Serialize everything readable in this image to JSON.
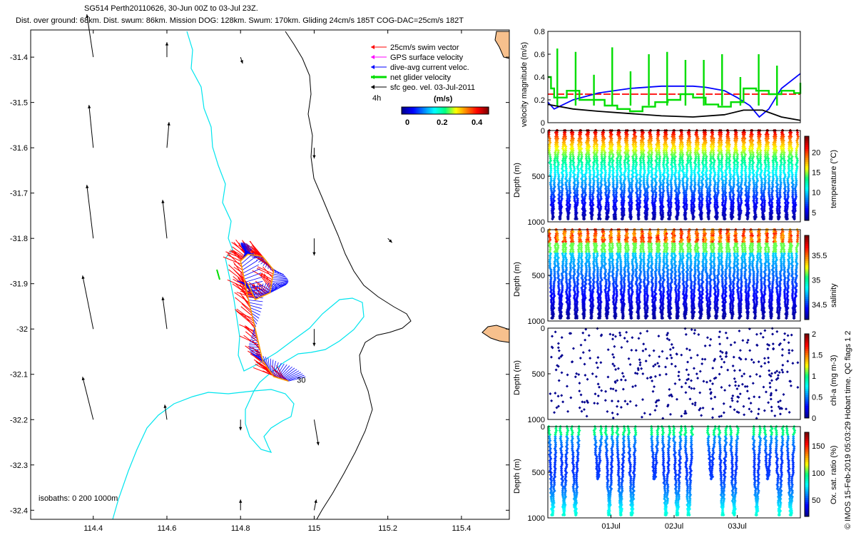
{
  "header": {
    "line1": "SG514 Perth20110626, 30-Jun 00Z to 03-Jul 23Z.",
    "line2": "Dist. over ground: 68km. Dist. swum: 86km. Mission DOG: 128km. Swum: 170km. Gliding 24cm/s 185T COG-DAC=25cm/s 182T"
  },
  "credit": "© IMOS 15-Feb-2019 05:03:29 Hobart time. QC flags 1  2",
  "colors": {
    "coast": "#00e5ee",
    "isobath": "#000000",
    "land": "#f7c08d",
    "swim": "#ff0000",
    "gps": "#ff00ff",
    "dac": "#0000ff",
    "net": "#00dd00",
    "geo": "#000000"
  },
  "chart_data": [
    {
      "type": "scatter",
      "panel": "map",
      "x_ticks": [
        "114.4",
        "114.6",
        "114.8",
        "115",
        "115.2",
        "115.4"
      ],
      "y_ticks": [
        "-31.4",
        "-31.5",
        "-31.6",
        "-31.7",
        "-31.8",
        "-31.9",
        "-32",
        "-32.1",
        "-32.2",
        "-32.3",
        "-32.4"
      ],
      "xlim": [
        114.23,
        115.53
      ],
      "ylim": [
        -32.42,
        -31.34
      ],
      "legend": {
        "position": "top-right",
        "entries": [
          {
            "label": "25cm/s swim vector",
            "color_key": "swim"
          },
          {
            "label": "GPS surface velocity",
            "color_key": "gps"
          },
          {
            "label": "dive-avg current veloc.",
            "color_key": "dac"
          },
          {
            "label": "net glider velocity",
            "color_key": "net"
          },
          {
            "label": "sfc geo. vel. 03-Jul-2011",
            "color_key": "geo"
          }
        ]
      },
      "time_step_label": "4h",
      "colorbar": {
        "title": "(m/s)",
        "ticks": [
          "0",
          "0.2",
          "0.4"
        ],
        "range": [
          0,
          0.5
        ]
      },
      "track_start_label": "30",
      "isobaths_label": "isobaths: 0   200  1000m",
      "track": [
        {
          "lon": 114.93,
          "lat": -32.115
        },
        {
          "lon": 114.89,
          "lat": -32.105
        },
        {
          "lon": 114.86,
          "lat": -32.07
        },
        {
          "lon": 114.84,
          "lat": -32.0
        },
        {
          "lon": 114.82,
          "lat": -31.93
        },
        {
          "lon": 114.8,
          "lat": -31.85
        },
        {
          "lon": 114.82,
          "lat": -31.835
        },
        {
          "lon": 114.86,
          "lat": -31.84
        },
        {
          "lon": 114.89,
          "lat": -31.87
        },
        {
          "lon": 114.88,
          "lat": -31.92
        },
        {
          "lon": 114.84,
          "lat": -31.935
        },
        {
          "lon": 114.82,
          "lat": -31.9
        }
      ],
      "geo_vectors": [
        {
          "lon": 114.4,
          "lat": -31.4,
          "u": -0.03,
          "v": 0.2
        },
        {
          "lon": 114.6,
          "lat": -31.4,
          "u": 0.0,
          "v": 0.07
        },
        {
          "lon": 114.8,
          "lat": -31.4,
          "u": 0.01,
          "v": -0.03
        },
        {
          "lon": 114.4,
          "lat": -31.6,
          "u": -0.02,
          "v": 0.2
        },
        {
          "lon": 114.6,
          "lat": -31.6,
          "u": 0.01,
          "v": 0.12
        },
        {
          "lon": 115.0,
          "lat": -31.6,
          "u": 0.0,
          "v": -0.05
        },
        {
          "lon": 114.4,
          "lat": -31.8,
          "u": -0.03,
          "v": 0.25
        },
        {
          "lon": 114.6,
          "lat": -31.8,
          "u": -0.02,
          "v": 0.18
        },
        {
          "lon": 115.0,
          "lat": -31.8,
          "u": 0.0,
          "v": -0.08
        },
        {
          "lon": 115.2,
          "lat": -31.8,
          "u": 0.02,
          "v": -0.02
        },
        {
          "lon": 114.4,
          "lat": -32.0,
          "u": -0.05,
          "v": 0.25
        },
        {
          "lon": 114.6,
          "lat": -32.0,
          "u": -0.02,
          "v": 0.15
        },
        {
          "lon": 115.0,
          "lat": -32.0,
          "u": 0.0,
          "v": -0.08
        },
        {
          "lon": 114.4,
          "lat": -32.2,
          "u": -0.05,
          "v": 0.2
        },
        {
          "lon": 114.6,
          "lat": -32.2,
          "u": -0.01,
          "v": 0.07
        },
        {
          "lon": 114.8,
          "lat": -32.2,
          "u": 0.0,
          "v": -0.05
        },
        {
          "lon": 115.0,
          "lat": -32.2,
          "u": 0.02,
          "v": -0.12
        },
        {
          "lon": 114.8,
          "lat": -32.4,
          "u": 0.0,
          "v": 0.05
        },
        {
          "lon": 115.0,
          "lat": -32.4,
          "u": 0.01,
          "v": 0.05
        }
      ]
    },
    {
      "type": "line",
      "panel": "velocity",
      "ylabel": "velocity magnitude (m/s)",
      "ylim": [
        0,
        0.8
      ],
      "y_ticks": [
        "0",
        "0.2",
        "0.4",
        "0.6",
        "0.8"
      ],
      "xlim": [
        0,
        4
      ],
      "series": [
        {
          "color_key": "swim",
          "style": "dashed",
          "x": [
            0,
            4
          ],
          "values": [
            0.25,
            0.25
          ]
        },
        {
          "color_key": "dac",
          "x": [
            0,
            0.1,
            0.4,
            0.8,
            1.3,
            1.8,
            2.3,
            2.5,
            2.8,
            3.0,
            3.2,
            3.35,
            3.5,
            3.7,
            4.0
          ],
          "values": [
            0.18,
            0.12,
            0.2,
            0.26,
            0.3,
            0.32,
            0.32,
            0.31,
            0.28,
            0.22,
            0.15,
            0.05,
            0.12,
            0.3,
            0.43
          ]
        },
        {
          "color_key": "geo",
          "x": [
            0,
            0.4,
            0.8,
            1.3,
            1.8,
            2.3,
            2.8,
            3.1,
            3.4,
            3.7,
            4.0
          ],
          "values": [
            0.16,
            0.12,
            0.1,
            0.08,
            0.06,
            0.05,
            0.07,
            0.11,
            0.11,
            0.05,
            0.02
          ]
        },
        {
          "color_key": "net",
          "style": "steps",
          "x": [
            0,
            0.05,
            0.1,
            0.3,
            0.5,
            0.7,
            0.9,
            1.1,
            1.3,
            1.5,
            1.7,
            1.9,
            2.1,
            2.3,
            2.5,
            2.7,
            2.9,
            3.1,
            3.3,
            3.5,
            3.7,
            3.9,
            4.0
          ],
          "values": [
            0.4,
            0.3,
            0.22,
            0.28,
            0.2,
            0.2,
            0.15,
            0.12,
            0.1,
            0.14,
            0.18,
            0.2,
            0.25,
            0.22,
            0.16,
            0.14,
            0.18,
            0.3,
            0.28,
            0.25,
            0.28,
            0.26,
            0.35
          ],
          "spikes": [
            0.65,
            0.62,
            0.42,
            0.66,
            0.45,
            0.6,
            0.62,
            0.55,
            0.55,
            0.6,
            0.4,
            0.6,
            0.5
          ]
        }
      ]
    },
    {
      "type": "scatter",
      "panel": "temperature",
      "ylabel": "Depth (m)",
      "ylim": [
        1000,
        0
      ],
      "y_ticks": [
        "0",
        "500",
        "1000"
      ],
      "xlim": [
        0,
        4
      ],
      "colorbar": {
        "label": "temperature (°C)",
        "range": [
          3,
          24
        ],
        "ticks": [
          "5",
          "10",
          "15",
          "20"
        ]
      },
      "dives": 32,
      "max_depth": 980
    },
    {
      "type": "scatter",
      "panel": "salinity",
      "ylabel": "Depth (m)",
      "ylim": [
        1000,
        0
      ],
      "y_ticks": [
        "0",
        "500",
        "1000"
      ],
      "xlim": [
        0,
        4
      ],
      "colorbar": {
        "label": "salinity",
        "range": [
          34.2,
          35.9
        ],
        "ticks": [
          "34.5",
          "35",
          "35.5"
        ]
      },
      "dives": 32,
      "max_depth": 980
    },
    {
      "type": "scatter",
      "panel": "chlorophyll",
      "ylabel": "Depth (m)",
      "ylim": [
        1000,
        0
      ],
      "y_ticks": [
        "0",
        "500",
        "1000"
      ],
      "xlim": [
        0,
        4
      ],
      "colorbar": {
        "label": "chl-a (mg m-3)",
        "range": [
          0,
          2
        ],
        "ticks": [
          "0",
          "0.5",
          "1",
          "1.5",
          "2"
        ]
      },
      "points": 420
    },
    {
      "type": "scatter",
      "panel": "oxygen",
      "ylabel": "Depth (m)",
      "ylim": [
        1000,
        0
      ],
      "y_ticks": [
        "0",
        "500",
        "1000"
      ],
      "xlim": [
        0,
        4
      ],
      "x_ticks": [
        {
          "label": "01Jul",
          "x": 1
        },
        {
          "label": "02Jul",
          "x": 2
        },
        {
          "label": "03Jul",
          "x": 3
        }
      ],
      "colorbar": {
        "label": "Ox. sat. ratio (%)",
        "range": [
          20,
          175
        ],
        "ticks": [
          "50",
          "100",
          "150"
        ]
      },
      "dives": 22,
      "max_depth": 980
    }
  ]
}
